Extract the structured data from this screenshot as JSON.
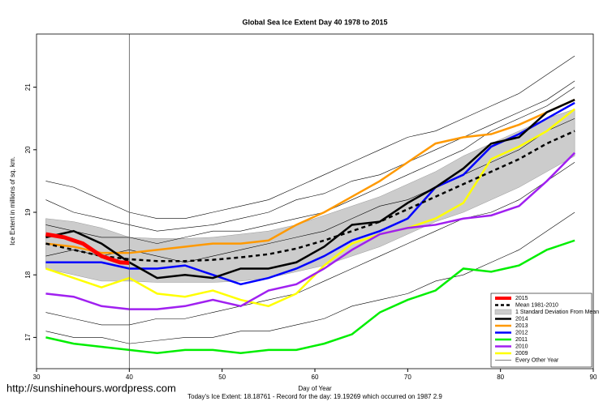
{
  "chart_data": {
    "type": "line",
    "title": "Global Sea Ice Extent Day 40 1978 to 2015",
    "x_label": "Day of Year",
    "y_label": "Ice Extent in millions of sq. km.",
    "footnote": "Today's Ice Extent: 18.18761  - Record for the day: 19.19269 which occurred on 1987 2.9",
    "watermark": "http://sunshinehours.wordpress.com",
    "xlim": [
      30,
      90
    ],
    "ylim": [
      16.5,
      21.85
    ],
    "xticks": [
      30,
      40,
      50,
      60,
      70,
      80,
      90
    ],
    "yticks": [
      17,
      18,
      19,
      20,
      21
    ],
    "marker_day": 40,
    "legend": "bottom-right",
    "x": [
      31,
      34,
      37,
      40,
      43,
      46,
      49,
      52,
      55,
      58,
      61,
      64,
      67,
      70,
      73,
      76,
      79,
      82,
      85,
      88
    ],
    "band": {
      "name": "1 Standard Deviation From Mean",
      "color": "#cccccc",
      "upper": [
        18.9,
        18.85,
        18.75,
        18.6,
        18.58,
        18.58,
        18.6,
        18.65,
        18.7,
        18.8,
        18.95,
        19.1,
        19.25,
        19.45,
        19.65,
        19.9,
        20.1,
        20.3,
        20.5,
        20.65
      ],
      "lower": [
        18.1,
        18.0,
        17.9,
        17.9,
        17.88,
        17.88,
        17.88,
        17.9,
        17.95,
        18.05,
        18.15,
        18.3,
        18.45,
        18.65,
        18.85,
        19.0,
        19.2,
        19.4,
        19.65,
        19.9
      ]
    },
    "mean": {
      "name": "Mean 1981-2010",
      "color": "#000000",
      "values": [
        18.5,
        18.4,
        18.3,
        18.25,
        18.22,
        18.22,
        18.24,
        18.28,
        18.33,
        18.42,
        18.55,
        18.7,
        18.85,
        19.05,
        19.25,
        19.45,
        19.65,
        19.85,
        20.1,
        20.3
      ]
    },
    "current": {
      "name": "2015",
      "color": "#ff0000",
      "x": [
        31,
        33,
        35,
        37,
        39,
        40
      ],
      "values": [
        18.65,
        18.6,
        18.5,
        18.3,
        18.2,
        18.19
      ]
    },
    "series": [
      {
        "name": "2014",
        "color": "#000000",
        "values": [
          18.6,
          18.7,
          18.5,
          18.2,
          17.95,
          18.0,
          17.95,
          18.1,
          18.1,
          18.2,
          18.45,
          18.8,
          18.85,
          19.15,
          19.4,
          19.7,
          20.1,
          20.2,
          20.6,
          20.8
        ]
      },
      {
        "name": "2013",
        "color": "#ff9900",
        "values": [
          18.5,
          18.45,
          18.35,
          18.35,
          18.4,
          18.45,
          18.5,
          18.5,
          18.55,
          18.8,
          19.0,
          19.25,
          19.5,
          19.8,
          20.1,
          20.2,
          20.25,
          20.4,
          20.6,
          20.8
        ]
      },
      {
        "name": "2012",
        "color": "#0000ff",
        "values": [
          18.2,
          18.2,
          18.2,
          18.1,
          18.1,
          18.15,
          18.0,
          17.85,
          17.95,
          18.1,
          18.3,
          18.55,
          18.7,
          18.9,
          19.4,
          19.6,
          20.05,
          20.25,
          20.5,
          20.75
        ]
      },
      {
        "name": "2011",
        "color": "#00ee00",
        "values": [
          17.0,
          16.9,
          16.85,
          16.8,
          16.75,
          16.8,
          16.8,
          16.75,
          16.8,
          16.8,
          16.9,
          17.05,
          17.4,
          17.6,
          17.75,
          18.1,
          18.05,
          18.15,
          18.4,
          18.55
        ]
      },
      {
        "name": "2010",
        "color": "#a020f0",
        "values": [
          17.7,
          17.65,
          17.5,
          17.45,
          17.45,
          17.5,
          17.6,
          17.5,
          17.75,
          17.85,
          18.1,
          18.4,
          18.65,
          18.75,
          18.8,
          18.9,
          18.95,
          19.1,
          19.5,
          19.95
        ]
      },
      {
        "name": "2009",
        "color": "#ffff00",
        "values": [
          18.1,
          17.95,
          17.8,
          17.95,
          17.7,
          17.65,
          17.75,
          17.6,
          17.5,
          17.7,
          18.15,
          18.5,
          18.65,
          18.75,
          18.9,
          19.15,
          19.85,
          20.05,
          20.3,
          20.65
        ]
      }
    ],
    "other_years": {
      "name": "Every Other Year",
      "color": "#000000",
      "lines": [
        [
          19.5,
          19.4,
          19.2,
          19.0,
          18.9,
          18.9,
          19.0,
          19.1,
          19.2,
          19.4,
          19.6,
          19.8,
          20.0,
          20.2,
          20.3,
          20.5,
          20.7,
          20.9,
          21.2,
          21.5
        ],
        [
          18.8,
          18.7,
          18.6,
          18.6,
          18.5,
          18.6,
          18.7,
          18.7,
          18.8,
          18.9,
          19.0,
          19.2,
          19.4,
          19.6,
          19.8,
          20.0,
          20.3,
          20.5,
          20.7,
          21.0
        ],
        [
          17.4,
          17.3,
          17.2,
          17.2,
          17.3,
          17.3,
          17.4,
          17.5,
          17.6,
          17.7,
          17.9,
          18.1,
          18.3,
          18.5,
          18.7,
          18.9,
          19.0,
          19.2,
          19.5,
          19.8
        ],
        [
          17.1,
          17.0,
          17.0,
          16.9,
          16.95,
          17.0,
          17.0,
          17.1,
          17.1,
          17.2,
          17.3,
          17.5,
          17.6,
          17.7,
          17.9,
          18.0,
          18.2,
          18.4,
          18.7,
          19.0
        ],
        [
          19.2,
          19.0,
          18.9,
          18.8,
          18.7,
          18.75,
          18.8,
          18.9,
          19.0,
          19.2,
          19.3,
          19.5,
          19.6,
          19.8,
          20.0,
          20.2,
          20.4,
          20.6,
          20.8,
          21.1
        ],
        [
          18.3,
          18.4,
          18.3,
          18.4,
          18.3,
          18.2,
          18.3,
          18.4,
          18.5,
          18.6,
          18.7,
          18.9,
          19.1,
          19.2,
          19.4,
          19.6,
          19.8,
          20.0,
          20.3,
          20.5
        ]
      ]
    }
  }
}
